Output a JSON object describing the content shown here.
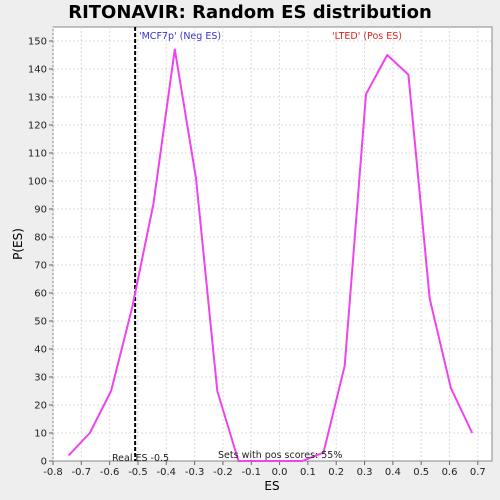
{
  "chart_data": {
    "type": "line",
    "title": "RITONAVIR: Random ES distribution",
    "xlabel": "ES",
    "ylabel": "P(ES)",
    "xlim": [
      -0.8,
      0.75
    ],
    "ylim": [
      0,
      155
    ],
    "x_ticks": [
      -0.8,
      -0.7,
      -0.6,
      -0.5,
      -0.4,
      -0.3,
      -0.2,
      -0.1,
      0.0,
      0.1,
      0.2,
      0.3,
      0.4,
      0.5,
      0.6,
      0.7
    ],
    "y_ticks": [
      0,
      10,
      20,
      30,
      40,
      50,
      60,
      70,
      80,
      90,
      100,
      110,
      120,
      130,
      140,
      150
    ],
    "grid": true,
    "series": [
      {
        "x": [
          -0.745,
          -0.67,
          -0.595,
          -0.52,
          -0.445,
          -0.37,
          -0.295,
          -0.22,
          -0.145,
          -0.07,
          0.005,
          0.08,
          0.155,
          0.23,
          0.305,
          0.38,
          0.455,
          0.53,
          0.605,
          0.68
        ],
        "y": [
          2,
          10,
          25,
          55,
          92,
          147,
          101,
          25,
          0,
          0,
          0,
          0,
          3,
          34,
          131,
          145,
          138,
          58,
          26,
          10
        ],
        "color": "#ee44ee"
      }
    ],
    "annotations": {
      "neg_label": "'MCF7p' (Neg ES)",
      "neg_color": "#3333cc",
      "pos_label": "'LTED' (Pos ES)",
      "pos_color": "#dd2222",
      "real_es_text": "Real ES -0.5",
      "real_es_value": -0.51,
      "pos_scores_text": "Sets with pos scores: 55%"
    }
  }
}
